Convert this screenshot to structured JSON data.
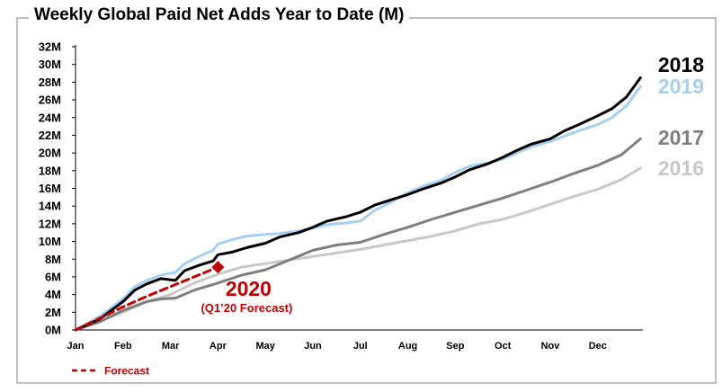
{
  "chart_data": {
    "type": "line",
    "title": "Weekly Global Paid Net Adds Year to Date (M)",
    "xlabel": "",
    "ylabel": "",
    "x_ticks": [
      "Jan",
      "Feb",
      "Mar",
      "Apr",
      "May",
      "Jun",
      "Jul",
      "Aug",
      "Sep",
      "Oct",
      "Nov",
      "Dec"
    ],
    "y_ticks": [
      "0M",
      "2M",
      "4M",
      "6M",
      "8M",
      "10M",
      "12M",
      "14M",
      "16M",
      "18M",
      "20M",
      "22M",
      "24M",
      "26M",
      "28M",
      "30M",
      "32M"
    ],
    "ylim": [
      0,
      32
    ],
    "xlim": [
      0,
      11.9
    ],
    "grid": false,
    "series": [
      {
        "name": "2018",
        "color": "#000000",
        "style": "solid",
        "points": [
          [
            0,
            0
          ],
          [
            0.5,
            1.2
          ],
          [
            1,
            3.2
          ],
          [
            1.25,
            4.5
          ],
          [
            1.5,
            5.2
          ],
          [
            1.8,
            5.8
          ],
          [
            2.1,
            5.6
          ],
          [
            2.3,
            6.7
          ],
          [
            2.6,
            7.3
          ],
          [
            2.9,
            7.8
          ],
          [
            3,
            8.5
          ],
          [
            3.3,
            8.8
          ],
          [
            3.6,
            9.3
          ],
          [
            4,
            9.8
          ],
          [
            4.3,
            10.5
          ],
          [
            4.7,
            11
          ],
          [
            5,
            11.6
          ],
          [
            5.3,
            12.3
          ],
          [
            5.7,
            12.8
          ],
          [
            6,
            13.3
          ],
          [
            6.3,
            14.1
          ],
          [
            6.7,
            14.8
          ],
          [
            7,
            15.3
          ],
          [
            7.3,
            15.9
          ],
          [
            7.7,
            16.6
          ],
          [
            8,
            17.3
          ],
          [
            8.3,
            18.1
          ],
          [
            8.7,
            18.8
          ],
          [
            9,
            19.5
          ],
          [
            9.3,
            20.3
          ],
          [
            9.6,
            21
          ],
          [
            10,
            21.6
          ],
          [
            10.3,
            22.5
          ],
          [
            10.6,
            23.2
          ],
          [
            11,
            24.2
          ],
          [
            11.3,
            25
          ],
          [
            11.6,
            26.3
          ],
          [
            11.9,
            28.5
          ]
        ]
      },
      {
        "name": "2019",
        "color": "#a6cff0",
        "style": "solid",
        "points": [
          [
            0,
            0
          ],
          [
            0.5,
            1.5
          ],
          [
            1,
            3.5
          ],
          [
            1.25,
            4.9
          ],
          [
            1.5,
            5.6
          ],
          [
            1.8,
            6.2
          ],
          [
            2.1,
            6.5
          ],
          [
            2.3,
            7.5
          ],
          [
            2.6,
            8.3
          ],
          [
            2.9,
            9
          ],
          [
            3,
            9.7
          ],
          [
            3.3,
            10.2
          ],
          [
            3.6,
            10.6
          ],
          [
            4,
            10.8
          ],
          [
            4.3,
            10.9
          ],
          [
            4.7,
            11.2
          ],
          [
            5,
            11.5
          ],
          [
            5.3,
            11.9
          ],
          [
            5.7,
            12.1
          ],
          [
            6,
            12.3
          ],
          [
            6.3,
            13.5
          ],
          [
            6.7,
            14.6
          ],
          [
            7,
            15.5
          ],
          [
            7.3,
            16.2
          ],
          [
            7.7,
            16.9
          ],
          [
            8,
            17.8
          ],
          [
            8.3,
            18.5
          ],
          [
            8.7,
            18.9
          ],
          [
            9,
            19.3
          ],
          [
            9.3,
            20
          ],
          [
            9.6,
            20.7
          ],
          [
            10,
            21.3
          ],
          [
            10.3,
            21.9
          ],
          [
            10.6,
            22.5
          ],
          [
            11,
            23.2
          ],
          [
            11.3,
            24
          ],
          [
            11.6,
            25.3
          ],
          [
            11.9,
            27.5
          ]
        ]
      },
      {
        "name": "2017",
        "color": "#7f7f7f",
        "style": "solid",
        "points": [
          [
            0,
            0
          ],
          [
            0.5,
            0.9
          ],
          [
            1,
            2.2
          ],
          [
            1.5,
            3.2
          ],
          [
            1.8,
            3.5
          ],
          [
            2.1,
            3.6
          ],
          [
            2.5,
            4.5
          ],
          [
            3,
            5.3
          ],
          [
            3.5,
            6.2
          ],
          [
            4,
            6.8
          ],
          [
            4.5,
            7.9
          ],
          [
            5,
            9
          ],
          [
            5.5,
            9.6
          ],
          [
            6,
            9.9
          ],
          [
            6.5,
            10.8
          ],
          [
            7,
            11.6
          ],
          [
            7.5,
            12.5
          ],
          [
            8,
            13.3
          ],
          [
            8.5,
            14.1
          ],
          [
            9,
            14.9
          ],
          [
            9.5,
            15.8
          ],
          [
            10,
            16.7
          ],
          [
            10.5,
            17.7
          ],
          [
            11,
            18.6
          ],
          [
            11.5,
            19.8
          ],
          [
            11.9,
            21.6
          ]
        ]
      },
      {
        "name": "2016",
        "color": "#c8c8c8",
        "style": "solid",
        "points": [
          [
            0,
            0
          ],
          [
            0.5,
            1
          ],
          [
            1,
            2
          ],
          [
            1.5,
            3.2
          ],
          [
            2,
            4
          ],
          [
            2.5,
            5.3
          ],
          [
            3,
            6.3
          ],
          [
            3.5,
            7.1
          ],
          [
            4,
            7.5
          ],
          [
            4.5,
            7.9
          ],
          [
            5,
            8.3
          ],
          [
            5.5,
            8.7
          ],
          [
            6,
            9.1
          ],
          [
            6.5,
            9.6
          ],
          [
            7,
            10.1
          ],
          [
            7.5,
            10.6
          ],
          [
            8,
            11.2
          ],
          [
            8.5,
            12
          ],
          [
            9,
            12.5
          ],
          [
            9.5,
            13.3
          ],
          [
            10,
            14.2
          ],
          [
            10.5,
            15.1
          ],
          [
            11,
            15.9
          ],
          [
            11.5,
            17
          ],
          [
            11.9,
            18.3
          ]
        ]
      },
      {
        "name": "Forecast",
        "color": "#c00000",
        "style": "dashed",
        "points": [
          [
            0,
            0
          ],
          [
            0.5,
            1.3
          ],
          [
            1,
            2.6
          ],
          [
            1.5,
            3.8
          ],
          [
            2,
            4.9
          ],
          [
            2.5,
            6
          ],
          [
            3,
            7.1
          ]
        ]
      }
    ],
    "forecast_marker": {
      "x": 3,
      "y": 7.1,
      "color": "#c00000",
      "label": "2020",
      "sublabel": "(Q1’20 Forecast)"
    },
    "legend": {
      "placement": "bottom-left",
      "entries": [
        {
          "label": "Forecast",
          "color": "#c00000",
          "style": "dashed"
        }
      ]
    }
  }
}
